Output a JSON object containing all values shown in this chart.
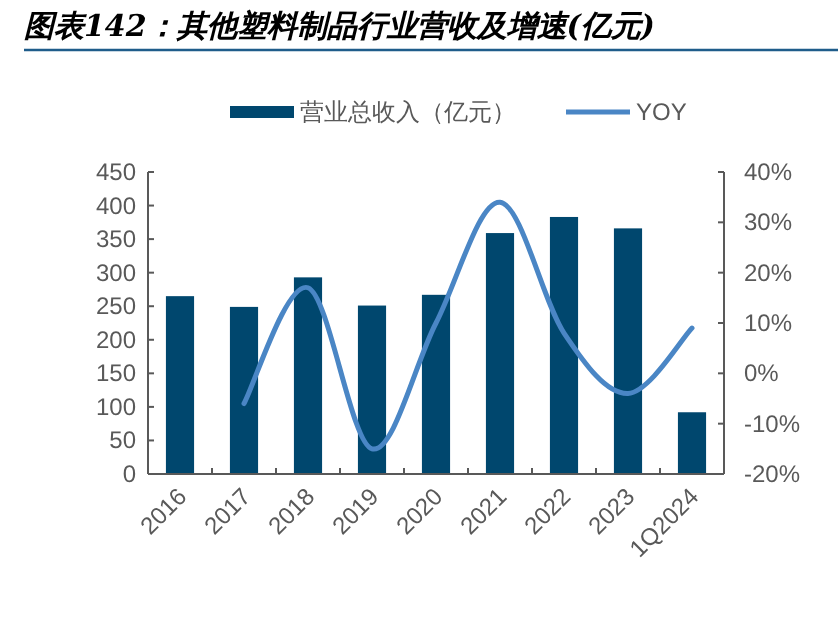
{
  "chart_data": {
    "type": "bar",
    "title": "图表142：其他塑料制品行业营收及增速(亿元)",
    "categories": [
      "2016",
      "2017",
      "2018",
      "2019",
      "2020",
      "2021",
      "2022",
      "2023",
      "1Q2024"
    ],
    "series": [
      {
        "name": "营业总收入（亿元）",
        "color": "#00476e",
        "values": [
          265,
          249,
          293,
          251,
          267,
          359,
          383,
          366,
          92
        ]
      },
      {
        "name": "YOY",
        "type": "line",
        "axis": "y2",
        "color": "#4a86c5",
        "values": [
          null,
          -6,
          17,
          -15,
          10,
          34,
          8,
          -4,
          9
        ]
      }
    ],
    "ylim": [
      0,
      450
    ],
    "yticks": [
      0,
      50,
      100,
      150,
      200,
      250,
      300,
      350,
      400,
      450
    ],
    "y2lim": [
      -20,
      40
    ],
    "y2ticks": [
      {
        "value": -20,
        "label": "-20%"
      },
      {
        "value": -10,
        "label": "-10%"
      },
      {
        "value": 0,
        "label": "0%"
      },
      {
        "value": 10,
        "label": "10%"
      },
      {
        "value": 20,
        "label": "20%"
      },
      {
        "value": 30,
        "label": "30%"
      },
      {
        "value": 40,
        "label": "40%"
      }
    ],
    "legend": "top",
    "grid": false,
    "marker": "none"
  }
}
